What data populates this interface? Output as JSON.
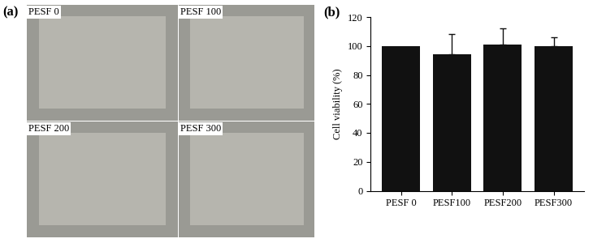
{
  "panel_labels": [
    "(a)",
    "(b)"
  ],
  "images": [
    "PESF 0",
    "PESF 100",
    "PESF 200",
    "PESF 300"
  ],
  "chart_data": {
    "type": "bar",
    "categories": [
      "PESF 0",
      "PESF100",
      "PESF200",
      "PESF300"
    ],
    "values": [
      100,
      94,
      101,
      100
    ],
    "errors": [
      null,
      14,
      11,
      6
    ],
    "y_label": "Cell viability (%)",
    "color": "#111111",
    "ylim": [
      0,
      120
    ],
    "yticks": [
      0,
      20,
      40,
      60,
      80,
      100,
      120
    ],
    "grid": false
  }
}
